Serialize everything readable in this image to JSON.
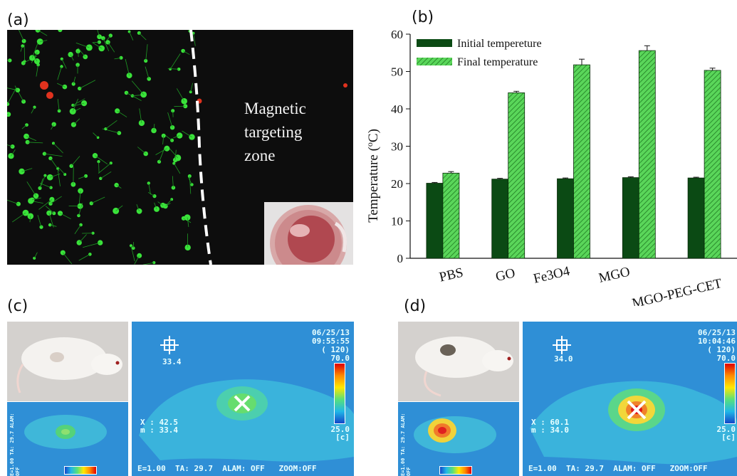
{
  "panel_a": {
    "label": "(a)",
    "zone_text": [
      "Magnetic",
      "targeting",
      "zone"
    ]
  },
  "panel_b": {
    "label": "(b)"
  },
  "chart_data": {
    "type": "bar",
    "categories": [
      "PBS",
      "GO",
      "Fe3O4",
      "MGO",
      "MGO-PEG-CET"
    ],
    "series": [
      {
        "name": "Initial tempereture",
        "values": [
          20.1,
          21.2,
          21.3,
          21.6,
          21.5
        ],
        "errors": [
          0.2,
          0.2,
          0.2,
          0.2,
          0.2
        ],
        "color": "#0b4a14",
        "pattern": "solid"
      },
      {
        "name": "Final temperature",
        "values": [
          22.8,
          44.3,
          51.8,
          55.6,
          50.3
        ],
        "errors": [
          0.4,
          0.4,
          1.5,
          1.3,
          0.6
        ],
        "color": "#5ad65a",
        "pattern": "hatched"
      }
    ],
    "ylabel_main": "Temperature (",
    "ylabel_sup": "o",
    "ylabel_end": "C)",
    "ylim": [
      0,
      60
    ],
    "yticks": [
      "0",
      "10",
      "20",
      "30",
      "40",
      "50",
      "60"
    ],
    "grid": false,
    "legend_position": "top-left"
  },
  "panel_c": {
    "label": "(c)",
    "date": "06/25/13",
    "time": "09:55:55",
    "range": "( 120)",
    "max": "70.0",
    "min": "25.0",
    "unit": "[c]",
    "crosshair_value": "33.4",
    "x_readout": "X  : 42.5",
    "m_readout": "m  : 33.4",
    "status": "E=1.00  TA: 29.7  ALAM: OFF   ZOOM:OFF",
    "side_status": "E=1.00  TA: 29.7  ALAM: OFF"
  },
  "panel_d": {
    "label": "(d)",
    "date": "06/25/13",
    "time": "10:04:46",
    "range": "( 120)",
    "max": "70.0",
    "min": "25.0",
    "unit": "[c]",
    "crosshair_value": "34.0",
    "x_readout": "X  : 60.1",
    "m_readout": "m  : 34.0",
    "status": "E=1.00  TA: 29.7  ALAM: OFF   ZOOM:OFF",
    "side_status": "E=1.00  TA: 29.7  ALAM: OFF"
  }
}
